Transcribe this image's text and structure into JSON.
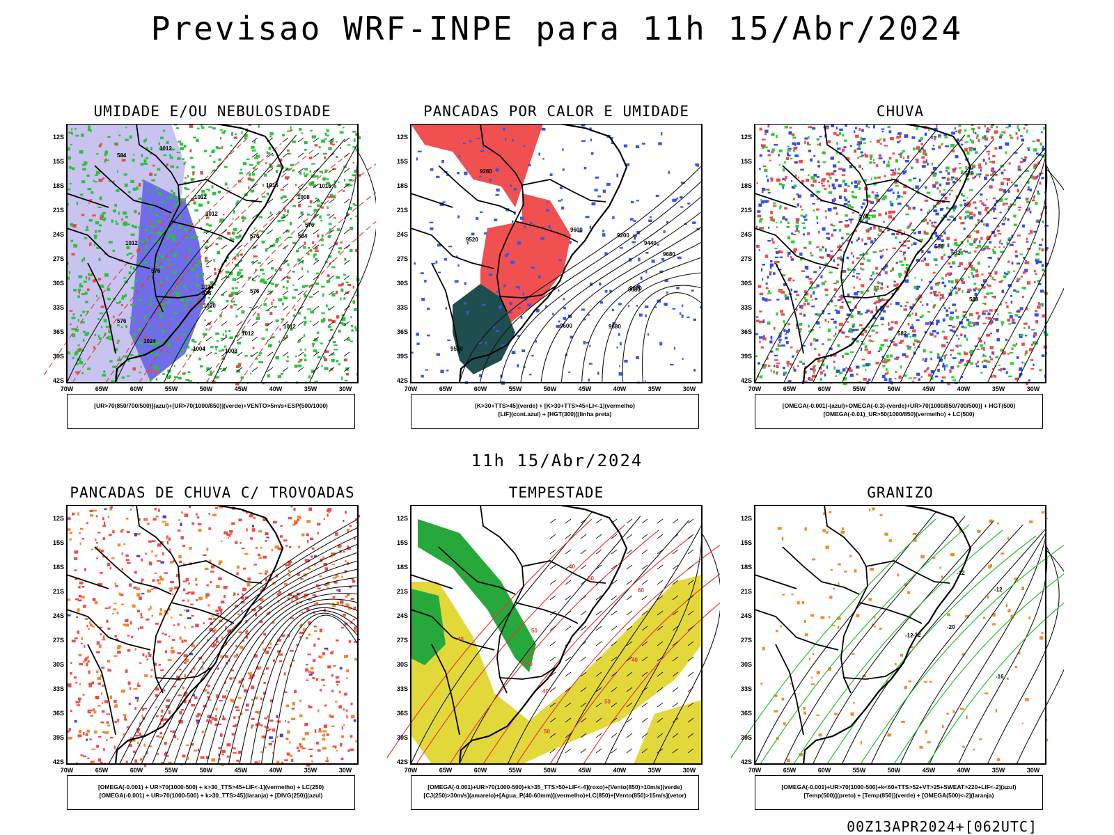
{
  "title": "Previsao WRF-INPE  para 11h 15/Abr/2024",
  "subtitle": "11h 15/Abr/2024",
  "footer": "00Z13APR2024+[062UTC]",
  "axis": {
    "lat_labels": [
      "12S",
      "15S",
      "18S",
      "21S",
      "24S",
      "27S",
      "30S",
      "33S",
      "36S",
      "39S",
      "42S"
    ],
    "lon_labels": [
      "70W",
      "65W",
      "60W",
      "55W",
      "50W",
      "45W",
      "40W",
      "35W",
      "30W"
    ]
  },
  "panels": [
    {
      "id": "umidade",
      "title": "UMIDADE E/OU NEBULOSIDADE",
      "legend": [
        "[UR>70(850/700/500)](azul)+[UR>70(1000/850)](verde)+VENTO>5m/s+ESP(500/1000)"
      ],
      "contour_labels": [
        "1012",
        "1012",
        "1012",
        "1016",
        "1020",
        "1016",
        "1012",
        "1008",
        "1004",
        "1008",
        "1012",
        "1024",
        "1024",
        "1012",
        "576",
        "576",
        "576",
        "576",
        "576",
        "576",
        "584",
        "584"
      ]
    },
    {
      "id": "pancadas-calor",
      "title": "PANCADAS POR CALOR E UMIDADE",
      "legend": [
        "[K>30+TTS>45](verde)  +  [K>30+TTS>45+LI<-1](vermelho)",
        "[LIF](cont.azul)  +  [HGT(300)](linha preta)"
      ],
      "contour_labels": [
        "9680",
        "9680",
        "9600",
        "9680",
        "9520",
        "9440",
        "9280",
        "9200",
        "9680",
        "9600",
        "9520"
      ]
    },
    {
      "id": "chuva",
      "title": "CHUVA",
      "legend": [
        "[OMEGA(-0.001)-(azul)+OMEGA(-0.3)-(verde)+UR>70(1000/850/700/500)]  +  HGT(500)",
        "[OMEGA(-0.01)_UR>50(1000/850)(vermelho)  +  LC(500)"
      ],
      "contour_labels": [
        "582",
        "576",
        "588",
        "582",
        "576",
        "588"
      ]
    },
    {
      "id": "pancadas-trovoadas",
      "title": "PANCADAS DE CHUVA C/ TROVOADAS",
      "legend": [
        "[OMEGA(-0.001)  +  UR>70(1000-500)  +  k>30_TTS>45+LIF<-1](vermelho)  +  LC(250)",
        "[OMEGA(-0.001)  +  UR>70(1000-500)  +  k>30_TTS>45](laranja)  +  [DIVG(250)](azul)"
      ],
      "contour_labels": []
    },
    {
      "id": "tempestade",
      "title": "TEMPESTADE",
      "legend": [
        "[OMEGA(-0.001)+UR>70(1000-500)+k>35_TTS>50+LIF<-4](roxo)+[Vento(850)>10m/s](verde)",
        "[CJ(250)>30m/s](amarelo)+[Agua_P(40-60mm)](vermelho)+LC(850)+[Vento(850)>15m/s](vetor)"
      ],
      "contour_labels": [
        "60",
        "50",
        "40",
        "50",
        "40",
        "50",
        "40",
        "50",
        "40",
        "50"
      ]
    },
    {
      "id": "granizo",
      "title": "GRANIZO",
      "legend": [
        "[OMEGA(-0.001)+UR>70(1000-500)+k<60+TTS>52+VT>25+SWEAT>220+LIF<-2](azul)",
        "[Temp(500)](preto)  +  [Temp(850)](verde)  +  [OMEGA(500)<-2](laranja)"
      ],
      "contour_labels": [
        "-12",
        "-12",
        "-16",
        "-20",
        "-12",
        "-12"
      ]
    }
  ]
}
